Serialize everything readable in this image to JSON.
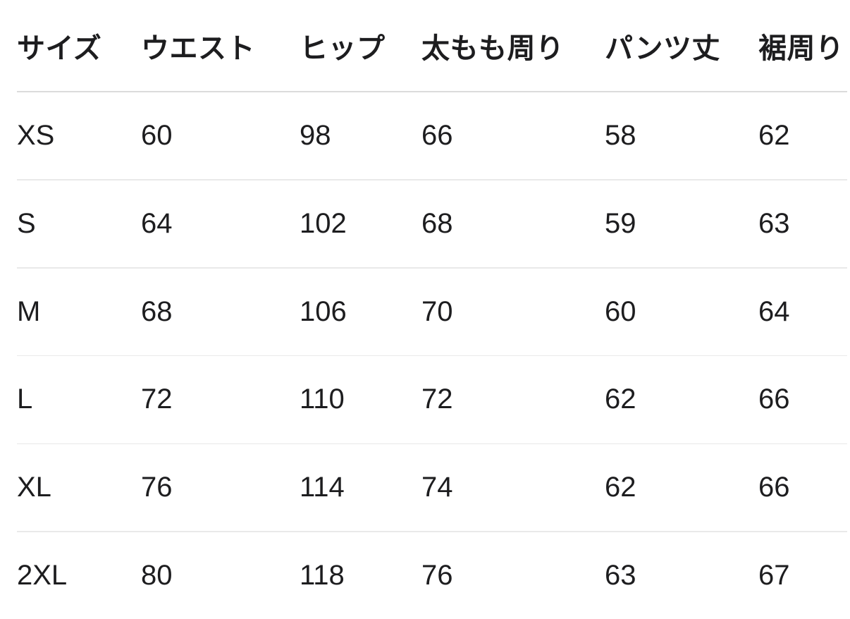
{
  "page": {
    "background_color": "#ffffff",
    "text_color": "#1d1d1f",
    "header_divider_color": "#dbdbdb",
    "row_divider_color": "#e9e9e9"
  },
  "chart_data": {
    "type": "table",
    "columns": [
      "サイズ",
      "ウエスト",
      "ヒップ",
      "太もも周り",
      "パンツ丈",
      "裾周り"
    ],
    "rows": [
      [
        "XS",
        60,
        98,
        66,
        58,
        62
      ],
      [
        "S",
        64,
        102,
        68,
        59,
        63
      ],
      [
        "M",
        68,
        106,
        70,
        60,
        64
      ],
      [
        "L",
        72,
        110,
        72,
        62,
        66
      ],
      [
        "XL",
        76,
        114,
        74,
        62,
        66
      ],
      [
        "2XL",
        80,
        118,
        76,
        63,
        67
      ]
    ]
  }
}
